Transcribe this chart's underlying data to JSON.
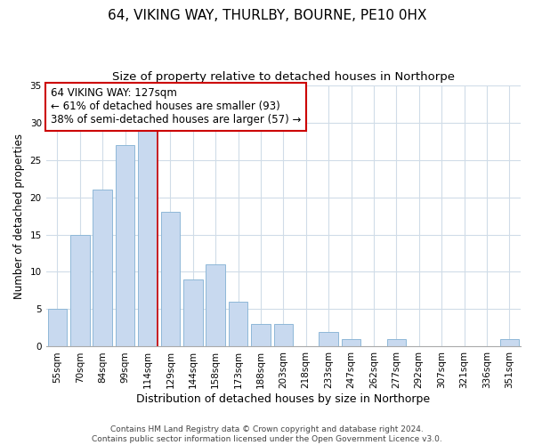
{
  "title": "64, VIKING WAY, THURLBY, BOURNE, PE10 0HX",
  "subtitle": "Size of property relative to detached houses in Northorpe",
  "xlabel": "Distribution of detached houses by size in Northorpe",
  "ylabel": "Number of detached properties",
  "bar_labels": [
    "55sqm",
    "70sqm",
    "84sqm",
    "99sqm",
    "114sqm",
    "129sqm",
    "144sqm",
    "158sqm",
    "173sqm",
    "188sqm",
    "203sqm",
    "218sqm",
    "233sqm",
    "247sqm",
    "262sqm",
    "277sqm",
    "292sqm",
    "307sqm",
    "321sqm",
    "336sqm",
    "351sqm"
  ],
  "bar_values": [
    5,
    15,
    21,
    27,
    29,
    18,
    9,
    11,
    6,
    3,
    3,
    0,
    2,
    1,
    0,
    1,
    0,
    0,
    0,
    0,
    1
  ],
  "bar_color": "#c8d9ef",
  "bar_edge_color": "#8fb8d8",
  "ylim": [
    0,
    35
  ],
  "yticks": [
    0,
    5,
    10,
    15,
    20,
    25,
    30,
    35
  ],
  "vline_color": "#cc0000",
  "annotation_title": "64 VIKING WAY: 127sqm",
  "annotation_line1": "← 61% of detached houses are smaller (93)",
  "annotation_line2": "38% of semi-detached houses are larger (57) →",
  "annotation_box_color": "#ffffff",
  "annotation_box_edge_color": "#cc0000",
  "footer_line1": "Contains HM Land Registry data © Crown copyright and database right 2024.",
  "footer_line2": "Contains public sector information licensed under the Open Government Licence v3.0.",
  "title_fontsize": 11,
  "subtitle_fontsize": 9.5,
  "xlabel_fontsize": 9,
  "ylabel_fontsize": 8.5,
  "tick_fontsize": 7.5,
  "footer_fontsize": 6.5,
  "annotation_fontsize": 8.5,
  "background_color": "#ffffff",
  "grid_color": "#d0dce8"
}
